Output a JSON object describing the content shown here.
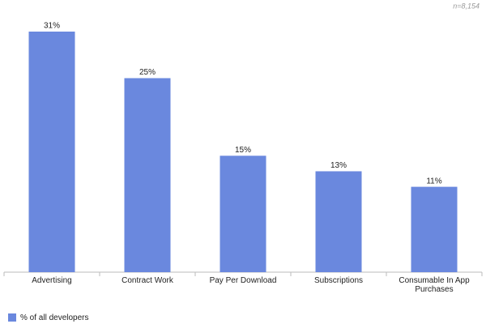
{
  "chart_data": {
    "type": "bar",
    "annotation": "n=8,154",
    "categories": [
      "Advertising",
      "Contract Work",
      "Pay Per Download",
      "Subscriptions",
      "Consumable In App Purchases"
    ],
    "series": [
      {
        "name": "% of all developers",
        "color": "#6a88de",
        "values": [
          31,
          25,
          15,
          13,
          11
        ],
        "value_labels": [
          "31%",
          "25%",
          "15%",
          "13%",
          "11%"
        ]
      }
    ]
  }
}
